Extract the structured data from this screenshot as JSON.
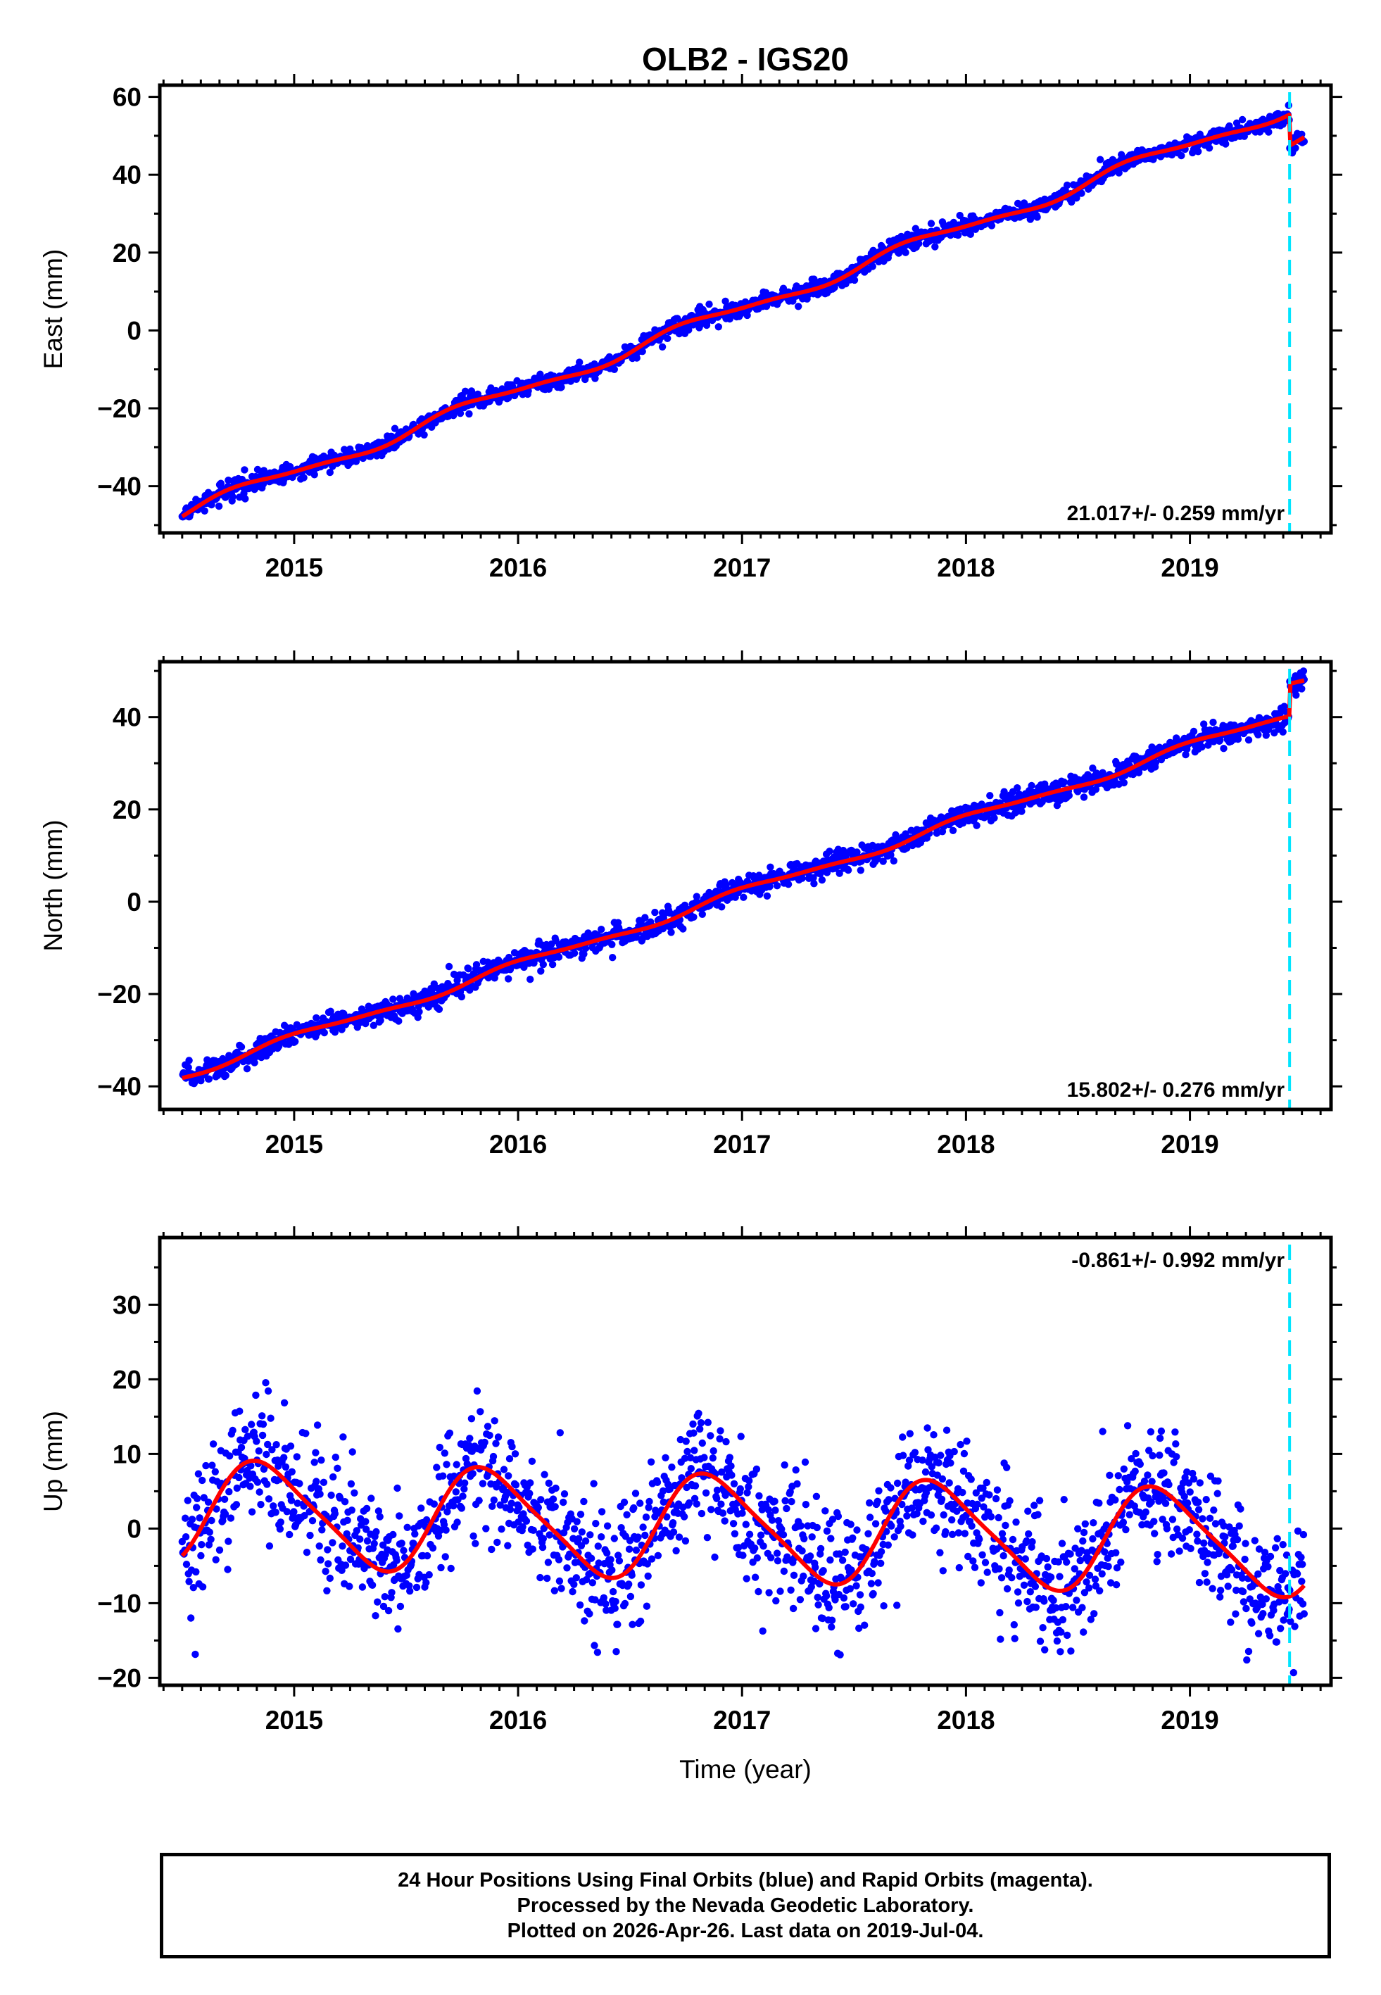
{
  "chart_data": [
    {
      "type": "scatter",
      "title": "OLB2 - IGS20",
      "component": "east",
      "ylabel": "East (mm)",
      "xlabel": "",
      "xlim": [
        2014.4,
        2019.63
      ],
      "ylim": [
        -52,
        63
      ],
      "yticks": [
        -40,
        -20,
        0,
        20,
        40,
        60
      ],
      "xticks": [
        2015,
        2016,
        2017,
        2018,
        2019
      ],
      "xtick_labels": [
        "2015",
        "2016",
        "2017",
        "2018",
        "2019"
      ],
      "rate_label": "21.017+/- 0.259 mm/yr",
      "rate_position": "bottom-right",
      "trend": {
        "start_year": 2014.5,
        "end_year": 2019.51,
        "rate": 21.017,
        "offset_at_start": -47,
        "annual_amp": 1.6,
        "semiannual_amp": 0.5,
        "phase": 0.45
      },
      "offset_event": {
        "year": 2019.445,
        "jump": -8
      },
      "noise_sd": 1.1,
      "event_line_year": 2019.445,
      "series": [
        {
          "name": "Final Orbits",
          "color": "#0000ff"
        },
        {
          "name": "model",
          "color": "#ff0000"
        }
      ]
    },
    {
      "type": "scatter",
      "component": "north",
      "ylabel": "North (mm)",
      "xlabel": "",
      "xlim": [
        2014.4,
        2019.63
      ],
      "ylim": [
        -45,
        52
      ],
      "yticks": [
        -40,
        -20,
        0,
        20,
        40
      ],
      "xticks": [
        2015,
        2016,
        2017,
        2018,
        2019
      ],
      "xtick_labels": [
        "2015",
        "2016",
        "2017",
        "2018",
        "2019"
      ],
      "rate_label": "15.802+/- 0.276 mm/yr",
      "rate_position": "bottom-right",
      "trend": {
        "start_year": 2014.5,
        "end_year": 2019.51,
        "rate": 15.802,
        "offset_at_start": -37.5,
        "annual_amp": 0.9,
        "semiannual_amp": 0.3,
        "phase": 1.2
      },
      "offset_event": {
        "year": 2019.445,
        "jump": 7
      },
      "noise_sd": 1.2,
      "event_line_year": 2019.445,
      "series": [
        {
          "name": "Final Orbits",
          "color": "#0000ff"
        },
        {
          "name": "model",
          "color": "#ff0000"
        }
      ]
    },
    {
      "type": "scatter",
      "component": "up",
      "ylabel": "Up (mm)",
      "xlabel": "Time (year)",
      "xlim": [
        2014.4,
        2019.63
      ],
      "ylim": [
        -21,
        39
      ],
      "yticks": [
        -20,
        -10,
        0,
        10,
        20,
        30
      ],
      "xticks": [
        2015,
        2016,
        2017,
        2018,
        2019
      ],
      "xtick_labels": [
        "2015",
        "2016",
        "2017",
        "2018",
        "2019"
      ],
      "rate_label": "-0.861+/- 0.992 mm/yr",
      "rate_position": "top-right",
      "trend": {
        "start_year": 2014.5,
        "end_year": 2019.51,
        "rate": -0.861,
        "offset_at_start": 2.2,
        "annual_amp": 6.8,
        "semiannual_amp": 1.2,
        "phase": 0.38
      },
      "offset_event": {
        "year": 2019.445,
        "jump": 0
      },
      "noise_sd": 4.4,
      "event_line_year": 2019.445,
      "series": [
        {
          "name": "Final Orbits",
          "color": "#0000ff"
        },
        {
          "name": "model",
          "color": "#ff0000"
        }
      ]
    }
  ],
  "colors": {
    "points": "#0000ff",
    "model": "#ff0000",
    "event_line": "#00e5ff",
    "axis": "#000000"
  },
  "footer": {
    "line1": "24 Hour Positions Using Final Orbits (blue) and Rapid Orbits (magenta).",
    "line2": "Processed by the Nevada Geodetic Laboratory.",
    "line3": "Plotted on 2026-Apr-26. Last data on 2019-Jul-04."
  }
}
